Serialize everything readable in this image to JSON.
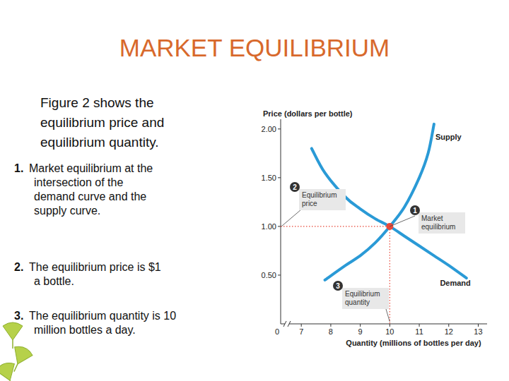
{
  "slide": {
    "title": "MARKET EQUILIBRIUM",
    "intro": [
      "Figure 2 shows the",
      "equilibrium price and",
      "equilibrium quantity."
    ],
    "points": [
      {
        "number": "1.",
        "lines": [
          "Market equilibrium at the",
          "intersection of the",
          "demand curve and the",
          "supply curve."
        ]
      },
      {
        "number": "2.",
        "lines": [
          "The equilibrium price is $1",
          "a bottle."
        ]
      },
      {
        "number": "3.",
        "lines": [
          "The equilibrium quantity is 10",
          "million bottles a day."
        ]
      }
    ]
  },
  "chart_data": {
    "type": "line",
    "y_label": "Price (dollars per bottle)",
    "x_label": "Quantity (millions of bottles per day)",
    "origin_label": "0",
    "xlim": [
      6.3,
      13.3
    ],
    "xticks": [
      7,
      8,
      9,
      10,
      11,
      12,
      13
    ],
    "ylim": [
      0,
      2.1
    ],
    "yticks": [
      {
        "value": 0.5,
        "label": "0.50"
      },
      {
        "value": 1,
        "label": "1.00"
      },
      {
        "value": 1.5,
        "label": "1.50"
      },
      {
        "value": 2,
        "label": "2.00"
      }
    ],
    "grid": false,
    "series": [
      {
        "name": "Supply",
        "color": "#2a9ad6",
        "x": [
          7.8,
          8.5,
          9,
          9.5,
          10,
          10.5,
          11,
          11.3,
          11.5
        ],
        "values": [
          0.45,
          0.6,
          0.7,
          0.83,
          1,
          1.2,
          1.5,
          1.75,
          2.05
        ]
      },
      {
        "name": "Demand",
        "color": "#2a9ad6",
        "x": [
          7.35,
          7.8,
          8.5,
          9,
          9.5,
          10,
          10.5,
          11,
          11.5,
          12,
          12.6
        ],
        "values": [
          1.8,
          1.55,
          1.3,
          1.18,
          1.08,
          1,
          0.9,
          0.8,
          0.7,
          0.6,
          0.47
        ]
      }
    ],
    "equilibrium": {
      "x": 10,
      "y": 1,
      "color": "#e8483a"
    },
    "annotations": [
      {
        "label": "1",
        "lines": [
          "Market",
          "equilibrium"
        ]
      },
      {
        "label": "2",
        "lines": [
          "Equilibrium",
          "price"
        ]
      },
      {
        "label": "3",
        "lines": [
          "Equilibrium",
          "quantity"
        ]
      }
    ]
  }
}
